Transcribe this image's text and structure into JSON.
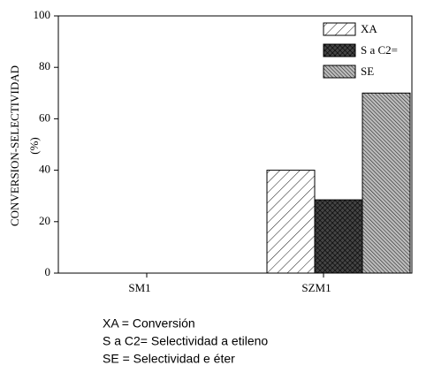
{
  "chart_data": {
    "type": "bar",
    "ylabel": [
      "CONVERSION-SELECTIVIDAD",
      "(%)"
    ],
    "categories": [
      "SM1",
      "SZM1"
    ],
    "series": [
      {
        "name": "XA",
        "color": "#ffffff",
        "values": [
          0,
          40
        ]
      },
      {
        "name": "S a C2=",
        "color": "#444444",
        "values": [
          0,
          28.5
        ]
      },
      {
        "name": "SE",
        "color": "#bbbbbb",
        "values": [
          0,
          70
        ]
      }
    ],
    "ylim": [
      0,
      100
    ],
    "yticks": [
      0,
      20,
      40,
      60,
      80,
      100
    ],
    "legend": "upper right",
    "notes": [
      "XA = Conversión",
      "S a C2= Selectividad a etileno",
      "SE = Selectividad e éter"
    ]
  }
}
